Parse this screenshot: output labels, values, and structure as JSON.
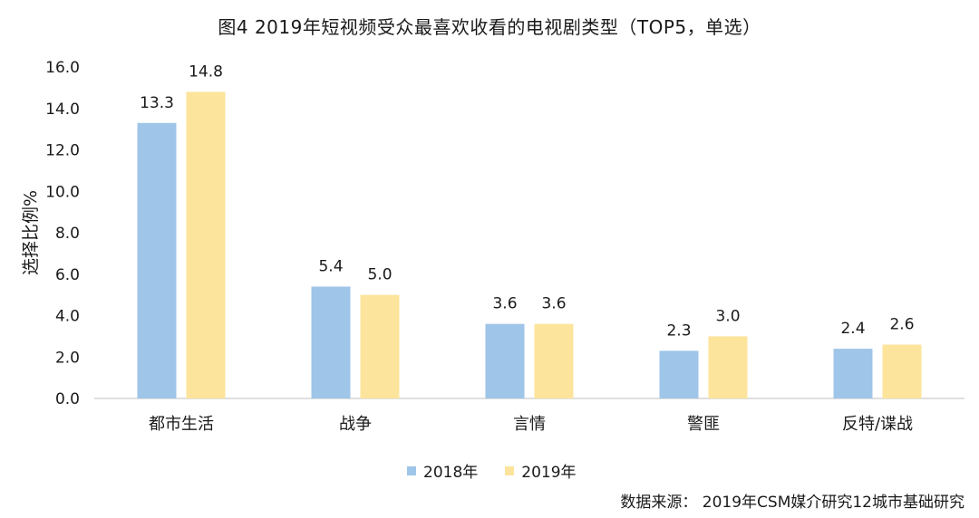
{
  "chart_data": {
    "type": "bar",
    "title": "图4  2019年短视频受众最喜欢收看的电视剧类型（TOP5，单选）",
    "ylabel": "选择比例%",
    "xlabel": "",
    "ylim": [
      0,
      16
    ],
    "yticks": [
      "0.0",
      "2.0",
      "4.0",
      "6.0",
      "8.0",
      "10.0",
      "12.0",
      "14.0",
      "16.0"
    ],
    "categories": [
      "都市生活",
      "战争",
      "言情",
      "警匪",
      "反特/谍战"
    ],
    "series": [
      {
        "name": "2018年",
        "color": "#9fc5e8",
        "values": [
          13.3,
          5.4,
          3.6,
          2.3,
          2.4
        ]
      },
      {
        "name": "2019年",
        "color": "#fde49c",
        "values": [
          14.8,
          5.0,
          3.6,
          3.0,
          2.6
        ]
      }
    ],
    "grid": false,
    "legend": "bottom"
  },
  "source": "数据来源：  2019年CSM媒介研究12城市基础研究"
}
